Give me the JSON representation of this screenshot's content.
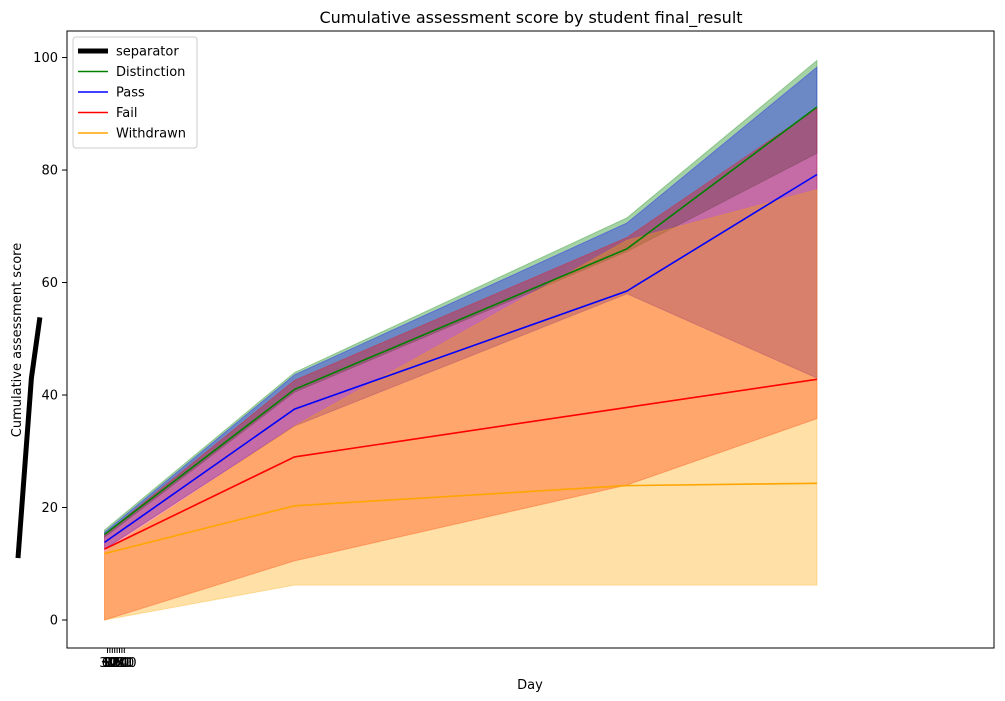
{
  "chart_data": {
    "type": "line",
    "title": "Cumulative assessment score by student final_result",
    "xlabel": "Day",
    "ylabel": "Cumulative assessment score",
    "ylim": [
      -5,
      104
    ],
    "yticks": [
      0,
      20,
      40,
      60,
      80,
      100
    ],
    "x_tick_labels": [
      "30",
      "60",
      "90",
      "120",
      "150",
      "180",
      "210",
      "240"
    ],
    "legend_position": "top-left",
    "grid": false,
    "separator": {
      "name": "separator",
      "color": "#000000",
      "points": [
        [
          10.9,
          11
        ],
        [
          12.3,
          43
        ],
        [
          13.2,
          53.8
        ]
      ]
    },
    "series": [
      {
        "name": "Distinction",
        "color": "#008000",
        "values": [
          {
            "x": 20,
            "y": 15.2,
            "band": [
              14.7,
              16.0
            ]
          },
          {
            "x": 40,
            "y": 41.0,
            "band": [
              40.5,
              44.0
            ]
          },
          {
            "x": 75,
            "y": 66.0,
            "band": [
              65.5,
              71.5
            ]
          },
          {
            "x": 95,
            "y": 91.2,
            "band": [
              83.0,
              99.5
            ]
          }
        ]
      },
      {
        "name": "Pass",
        "color": "#0000ff",
        "values": [
          {
            "x": 20,
            "y": 13.8,
            "band": [
              12.6,
              15.6
            ]
          },
          {
            "x": 40,
            "y": 37.5,
            "band": [
              34.5,
              43.6
            ]
          },
          {
            "x": 75,
            "y": 58.5,
            "band": [
              58.0,
              70.6
            ]
          },
          {
            "x": 95,
            "y": 79.2,
            "band": [
              43.0,
              98.3
            ]
          }
        ]
      },
      {
        "name": "Fail",
        "color": "#ff0000",
        "values": [
          {
            "x": 20,
            "y": 12.6,
            "band": [
              0.0,
              15.2
            ]
          },
          {
            "x": 40,
            "y": 29.0,
            "band": [
              10.5,
              42.6
            ]
          },
          {
            "x": 75,
            "y": 37.8,
            "band": [
              24.0,
              68.0
            ]
          },
          {
            "x": 95,
            "y": 42.8,
            "band": [
              35.8,
              91.0
            ]
          }
        ]
      },
      {
        "name": "Withdrawn",
        "color": "#ffa500",
        "values": [
          {
            "x": 20,
            "y": 11.8,
            "band": [
              0.0,
              12.0
            ]
          },
          {
            "x": 40,
            "y": 20.3,
            "band": [
              6.2,
              34.5
            ]
          },
          {
            "x": 75,
            "y": 23.9,
            "band": [
              6.2,
              67.5
            ]
          },
          {
            "x": 95,
            "y": 24.3,
            "band": [
              6.2,
              76.5
            ]
          }
        ]
      }
    ]
  }
}
